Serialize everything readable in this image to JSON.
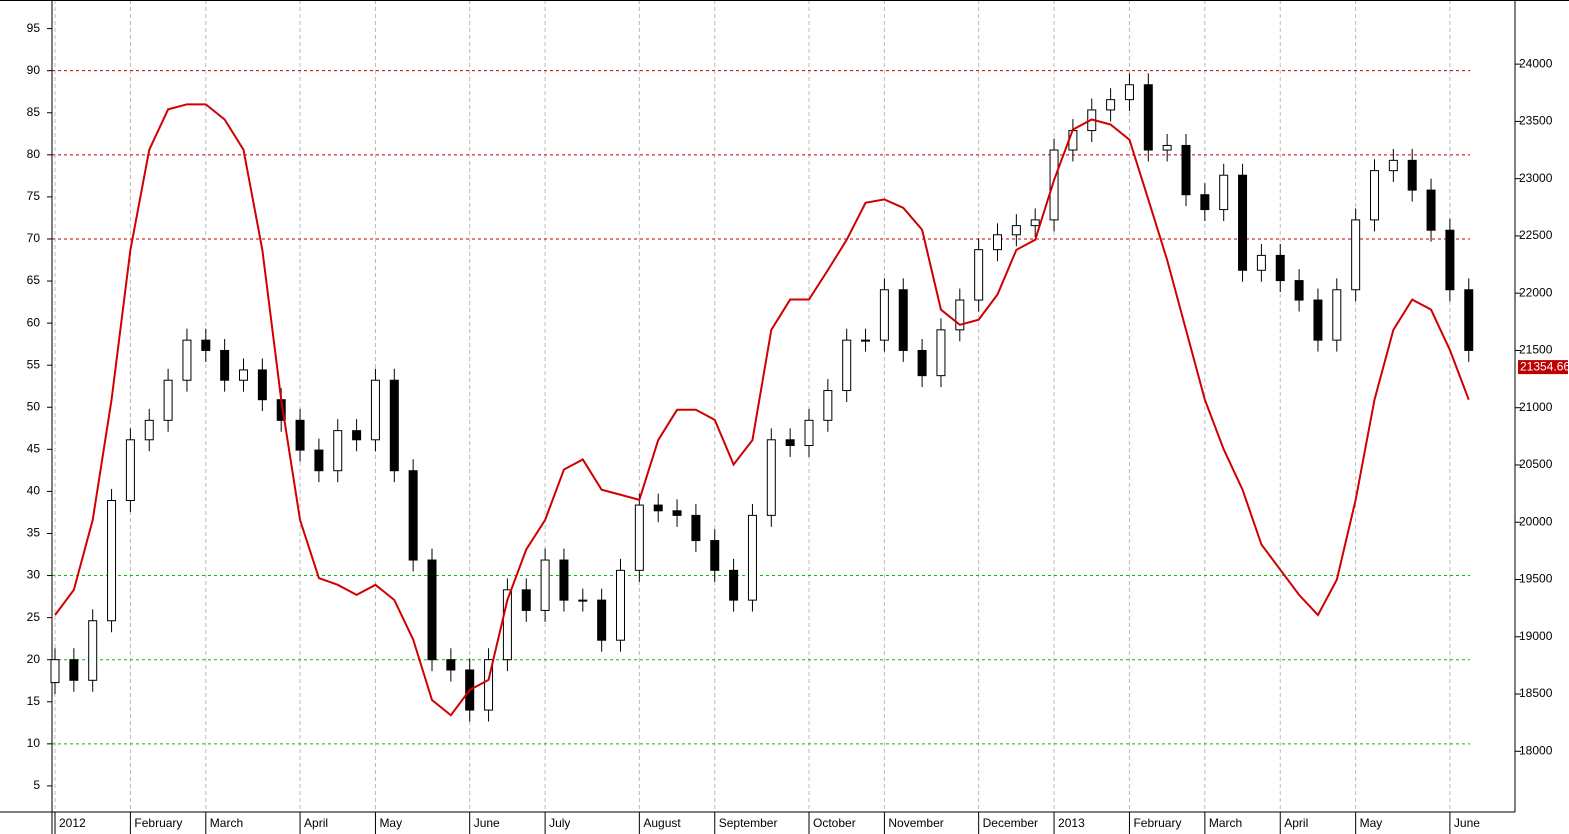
{
  "chart_data": {
    "type": "candlestick",
    "categories": [
      "2012",
      null,
      null,
      null,
      "February",
      null,
      null,
      null,
      "March",
      null,
      null,
      null,
      null,
      "April",
      null,
      null,
      null,
      "May",
      null,
      null,
      null,
      null,
      "June",
      null,
      null,
      null,
      "July",
      null,
      null,
      null,
      null,
      "August",
      null,
      null,
      null,
      "September",
      null,
      null,
      null,
      null,
      "October",
      null,
      null,
      null,
      "November",
      null,
      null,
      null,
      null,
      "December",
      null,
      null,
      null,
      "2013",
      null,
      null,
      null,
      "February",
      null,
      null,
      null,
      "March",
      null,
      null,
      null,
      "April",
      null,
      null,
      null,
      "May",
      null,
      null,
      null,
      null,
      "June",
      null
    ],
    "candles": {
      "axis": "y2",
      "open": [
        18600,
        18800,
        18620,
        19140,
        20190,
        20720,
        20890,
        21240,
        21590,
        21500,
        21240,
        21330,
        21070,
        20890,
        20630,
        20450,
        20800,
        20720,
        21240,
        20450,
        19670,
        18800,
        18710,
        18360,
        18800,
        19410,
        19230,
        19670,
        19320,
        19320,
        18970,
        19580,
        20150,
        20100,
        20060,
        19840,
        19580,
        19320,
        20060,
        20720,
        20670,
        20890,
        21150,
        21590,
        21590,
        22030,
        21500,
        21280,
        21680,
        21940,
        22380,
        22510,
        22590,
        22640,
        23250,
        23420,
        23600,
        23690,
        23820,
        23250,
        23290,
        22860,
        22730,
        23030,
        22200,
        22330,
        22110,
        21940,
        21590,
        22030,
        22640,
        23070,
        23160,
        22900,
        22550,
        22030
      ],
      "high": [
        18900,
        18900,
        19240,
        20290,
        20820,
        20990,
        21340,
        21690,
        21690,
        21600,
        21430,
        21430,
        21170,
        20990,
        20730,
        20900,
        20900,
        21340,
        21340,
        20550,
        19770,
        18900,
        18810,
        18900,
        19510,
        19510,
        19770,
        19770,
        19420,
        19420,
        19680,
        20250,
        20250,
        20200,
        20160,
        19940,
        19680,
        20160,
        20820,
        20820,
        20990,
        21250,
        21690,
        21690,
        22130,
        22130,
        21600,
        21780,
        22040,
        22480,
        22610,
        22690,
        22740,
        23350,
        23520,
        23700,
        23790,
        23920,
        23920,
        23390,
        23390,
        22960,
        23130,
        23130,
        22430,
        22430,
        22210,
        22040,
        22130,
        22740,
        23170,
        23260,
        23260,
        23000,
        22650,
        22130
      ],
      "low": [
        18500,
        18520,
        18520,
        19040,
        20090,
        20620,
        20790,
        21140,
        21400,
        21140,
        21140,
        20970,
        20790,
        20530,
        20350,
        20350,
        20620,
        20620,
        20350,
        19570,
        18700,
        18610,
        18260,
        18260,
        18700,
        19130,
        19130,
        19220,
        19220,
        18870,
        18870,
        19480,
        20000,
        19960,
        19740,
        19480,
        19220,
        19220,
        19960,
        20570,
        20570,
        20790,
        21050,
        21490,
        21490,
        21400,
        21180,
        21180,
        21580,
        21840,
        22280,
        22410,
        22490,
        22540,
        23150,
        23320,
        23500,
        23590,
        23150,
        23150,
        22760,
        22630,
        22630,
        22100,
        22100,
        22010,
        21840,
        21490,
        21490,
        21930,
        22540,
        22970,
        22800,
        22450,
        21930,
        21400
      ],
      "close": [
        18800,
        18620,
        19140,
        20190,
        20720,
        20890,
        21240,
        21590,
        21500,
        21240,
        21330,
        21070,
        20890,
        20630,
        20450,
        20800,
        20720,
        21240,
        20450,
        19670,
        18800,
        18710,
        18360,
        18800,
        19410,
        19230,
        19670,
        19320,
        19320,
        18970,
        19580,
        20150,
        20100,
        20060,
        19840,
        19580,
        19320,
        20060,
        20720,
        20670,
        20890,
        21150,
        21590,
        21590,
        22030,
        21500,
        21280,
        21680,
        21940,
        22380,
        22510,
        22590,
        22640,
        23250,
        23420,
        23600,
        23690,
        23820,
        23250,
        23290,
        22860,
        22730,
        23030,
        22200,
        22330,
        22110,
        21940,
        21590,
        22030,
        22640,
        23070,
        23160,
        22900,
        22550,
        22030,
        21500
      ]
    },
    "series": [
      {
        "color": "#d00000",
        "values": [
          25.3,
          28.3,
          36.6,
          50.9,
          68.7,
          80.6,
          85.4,
          86,
          86,
          84.2,
          80.6,
          68.7,
          50.9,
          36.6,
          29.7,
          28.9,
          27.7,
          28.9,
          27.1,
          22.4,
          15.2,
          13.4,
          16.4,
          17.6,
          27.1,
          33.1,
          36.6,
          42.6,
          43.8,
          40.2,
          39.6,
          39,
          46.1,
          49.7,
          49.7,
          48.5,
          43.2,
          46.1,
          59.2,
          62.8,
          62.8,
          66.3,
          69.9,
          74.3,
          74.7,
          73.7,
          71.1,
          61.6,
          59.8,
          60.4,
          63.4,
          68.7,
          69.9,
          77,
          83,
          84.2,
          83.6,
          81.8,
          74.7,
          67.5,
          59.2,
          50.9,
          45,
          40.2,
          33.7,
          30.7,
          27.7,
          25.3,
          29.5,
          39,
          50.9,
          59.2,
          62.8,
          61.6,
          56.8,
          50.9
        ]
      }
    ],
    "reference_lines": [
      {
        "value": 90,
        "color": "#c00000"
      },
      {
        "value": 80,
        "color": "#c00000"
      },
      {
        "value": 70,
        "color": "#c00000"
      },
      {
        "value": 30,
        "color": "#00c000"
      },
      {
        "value": 20,
        "color": "#00c000"
      },
      {
        "value": 10,
        "color": "#00c000"
      }
    ],
    "last_price": 21354.66,
    "ylim": [
      1.9,
      98.4
    ],
    "yticks": [
      5,
      10,
      15,
      20,
      25,
      30,
      35,
      40,
      45,
      50,
      55,
      60,
      65,
      70,
      75,
      80,
      85,
      90,
      95
    ],
    "y2lim": [
      17470,
      24560
    ],
    "y2ticks": [
      18000,
      18500,
      19000,
      19500,
      20000,
      20500,
      21000,
      21500,
      22000,
      22500,
      23000,
      23500,
      24000
    ],
    "grid": true
  }
}
